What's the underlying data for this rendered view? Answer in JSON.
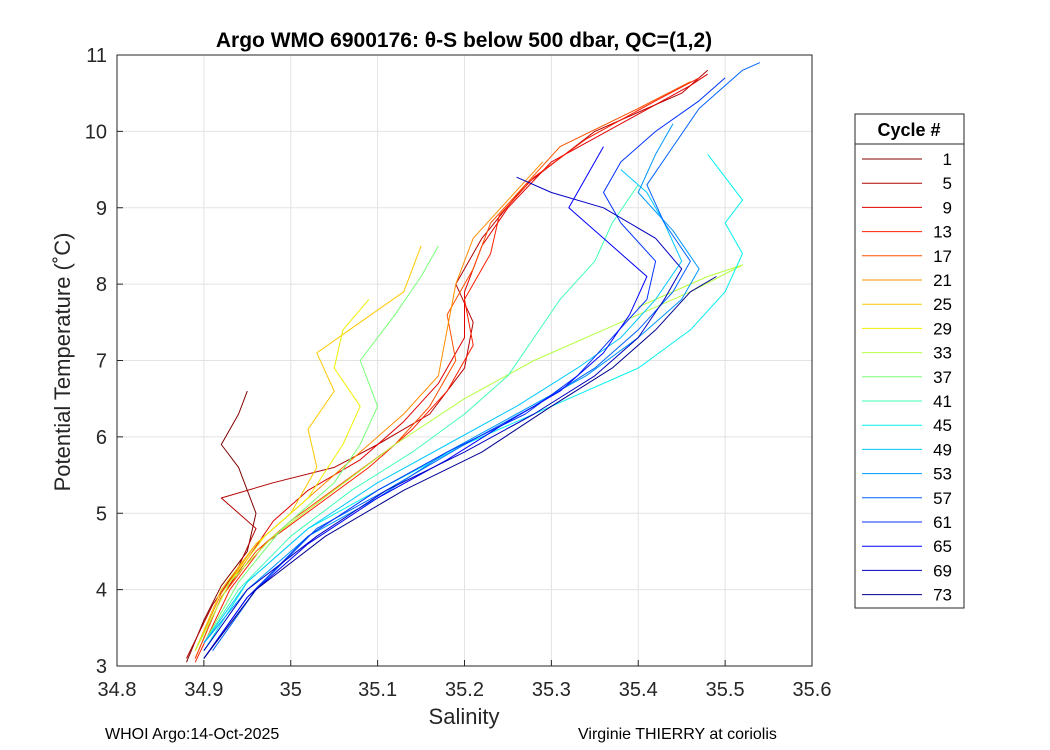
{
  "chart_data": {
    "type": "line",
    "title": "Argo WMO 6900176: θ-S below 500 dbar,  QC=(1,2)",
    "xlabel": "Salinity",
    "ylabel": "Potential Temperature (˚C)",
    "xlim": [
      34.8,
      35.6
    ],
    "ylim": [
      3,
      11
    ],
    "xticks": [
      "34.8",
      "34.9",
      "35",
      "35.1",
      "35.2",
      "35.3",
      "35.4",
      "35.5",
      "35.6"
    ],
    "yticks": [
      "3",
      "4",
      "5",
      "6",
      "7",
      "8",
      "9",
      "10",
      "11"
    ],
    "grid": true,
    "legend": {
      "title": "Cycle #",
      "position": "right",
      "entries": [
        "1",
        "5",
        "9",
        "13",
        "17",
        "21",
        "25",
        "29",
        "33",
        "37",
        "41",
        "45",
        "49",
        "53",
        "57",
        "61",
        "65",
        "69",
        "73"
      ]
    },
    "colors": [
      "#800000",
      "#b40000",
      "#e00000",
      "#ff1e00",
      "#ff5000",
      "#ff8c00",
      "#ffc800",
      "#f0f000",
      "#b4ff40",
      "#78ff78",
      "#40ffb4",
      "#00f0f0",
      "#00c8ff",
      "#0096ff",
      "#0064ff",
      "#0032ff",
      "#0000ff",
      "#0000c0",
      "#000090"
    ],
    "series": [
      {
        "name": "1",
        "points": [
          [
            34.88,
            3.05
          ],
          [
            34.9,
            3.6
          ],
          [
            34.92,
            4.05
          ],
          [
            34.95,
            4.5
          ],
          [
            34.96,
            5.0
          ],
          [
            34.94,
            5.6
          ],
          [
            34.92,
            5.9
          ],
          [
            34.94,
            6.3
          ],
          [
            34.95,
            6.6
          ]
        ]
      },
      {
        "name": "5",
        "points": [
          [
            34.88,
            3.1
          ],
          [
            34.91,
            3.8
          ],
          [
            34.94,
            4.3
          ],
          [
            34.96,
            4.8
          ],
          [
            34.92,
            5.2
          ],
          [
            34.98,
            5.4
          ],
          [
            35.05,
            5.6
          ],
          [
            35.1,
            5.9
          ],
          [
            35.16,
            6.3
          ],
          [
            35.2,
            6.9
          ],
          [
            35.21,
            7.5
          ],
          [
            35.19,
            8.0
          ],
          [
            35.22,
            8.6
          ],
          [
            35.27,
            9.3
          ],
          [
            35.35,
            10.0
          ],
          [
            35.45,
            10.5
          ],
          [
            35.48,
            10.8
          ]
        ]
      },
      {
        "name": "9",
        "points": [
          [
            34.89,
            3.1
          ],
          [
            34.92,
            3.9
          ],
          [
            34.95,
            4.4
          ],
          [
            34.98,
            4.9
          ],
          [
            35.02,
            5.3
          ],
          [
            35.08,
            5.7
          ],
          [
            35.13,
            6.2
          ],
          [
            35.17,
            6.7
          ],
          [
            35.2,
            7.3
          ],
          [
            35.2,
            7.9
          ],
          [
            35.22,
            8.5
          ],
          [
            35.25,
            9.0
          ],
          [
            35.3,
            9.6
          ],
          [
            35.38,
            10.1
          ],
          [
            35.46,
            10.6
          ],
          [
            35.48,
            10.75
          ]
        ]
      },
      {
        "name": "13",
        "points": [
          [
            34.89,
            3.05
          ],
          [
            34.93,
            4.0
          ],
          [
            34.97,
            4.6
          ],
          [
            35.03,
            5.1
          ],
          [
            35.09,
            5.6
          ],
          [
            35.14,
            6.1
          ],
          [
            35.18,
            6.6
          ],
          [
            35.21,
            7.2
          ],
          [
            35.2,
            7.8
          ],
          [
            35.23,
            8.4
          ],
          [
            35.24,
            8.9
          ],
          [
            35.28,
            9.4
          ],
          [
            35.34,
            9.9
          ],
          [
            35.42,
            10.4
          ],
          [
            35.47,
            10.7
          ]
        ]
      },
      {
        "name": "17",
        "points": [
          [
            34.89,
            3.1
          ],
          [
            34.92,
            3.9
          ],
          [
            34.96,
            4.5
          ],
          [
            35.0,
            4.9
          ],
          [
            35.06,
            5.4
          ],
          [
            35.12,
            5.9
          ],
          [
            35.16,
            6.4
          ],
          [
            35.19,
            7.0
          ],
          [
            35.18,
            7.6
          ],
          [
            35.21,
            8.2
          ],
          [
            35.23,
            8.8
          ],
          [
            35.27,
            9.3
          ],
          [
            35.31,
            9.8
          ],
          [
            35.4,
            10.3
          ],
          [
            35.46,
            10.65
          ]
        ]
      },
      {
        "name": "21",
        "points": [
          [
            34.89,
            3.2
          ],
          [
            34.92,
            3.95
          ],
          [
            34.96,
            4.6
          ],
          [
            35.02,
            5.2
          ],
          [
            35.08,
            5.8
          ],
          [
            35.13,
            6.3
          ],
          [
            35.17,
            6.8
          ],
          [
            35.18,
            7.4
          ],
          [
            35.19,
            8.0
          ],
          [
            35.21,
            8.6
          ],
          [
            35.25,
            9.1
          ],
          [
            35.29,
            9.6
          ]
        ]
      },
      {
        "name": "25",
        "points": [
          [
            34.89,
            3.2
          ],
          [
            34.92,
            4.0
          ],
          [
            34.96,
            4.6
          ],
          [
            35.0,
            5.0
          ],
          [
            35.03,
            5.6
          ],
          [
            35.02,
            6.1
          ],
          [
            35.05,
            6.6
          ],
          [
            35.03,
            7.1
          ],
          [
            35.08,
            7.5
          ],
          [
            35.13,
            7.9
          ],
          [
            35.15,
            8.5
          ]
        ]
      },
      {
        "name": "29",
        "points": [
          [
            34.89,
            3.2
          ],
          [
            34.93,
            4.1
          ],
          [
            34.97,
            4.7
          ],
          [
            35.02,
            5.2
          ],
          [
            35.06,
            5.9
          ],
          [
            35.08,
            6.4
          ],
          [
            35.05,
            6.9
          ],
          [
            35.06,
            7.4
          ],
          [
            35.09,
            7.8
          ]
        ]
      },
      {
        "name": "33",
        "points": [
          [
            34.89,
            3.2
          ],
          [
            34.93,
            4.1
          ],
          [
            34.98,
            4.7
          ],
          [
            35.05,
            5.3
          ],
          [
            35.12,
            5.9
          ],
          [
            35.2,
            6.5
          ],
          [
            35.28,
            7.0
          ],
          [
            35.38,
            7.5
          ],
          [
            35.46,
            7.9
          ],
          [
            35.52,
            8.25
          ],
          [
            35.48,
            8.1
          ],
          [
            35.4,
            7.7
          ]
        ]
      },
      {
        "name": "37",
        "points": [
          [
            34.9,
            3.3
          ],
          [
            34.94,
            4.1
          ],
          [
            34.99,
            4.8
          ],
          [
            35.05,
            5.4
          ],
          [
            35.08,
            5.9
          ],
          [
            35.1,
            6.4
          ],
          [
            35.08,
            7.0
          ],
          [
            35.12,
            7.6
          ],
          [
            35.15,
            8.1
          ],
          [
            35.17,
            8.5
          ]
        ]
      },
      {
        "name": "41",
        "points": [
          [
            34.9,
            3.3
          ],
          [
            34.94,
            4.0
          ],
          [
            35.0,
            4.7
          ],
          [
            35.07,
            5.3
          ],
          [
            35.14,
            5.8
          ],
          [
            35.2,
            6.3
          ],
          [
            35.25,
            6.8
          ],
          [
            35.28,
            7.3
          ],
          [
            35.31,
            7.8
          ],
          [
            35.35,
            8.3
          ],
          [
            35.37,
            8.8
          ],
          [
            35.4,
            9.3
          ]
        ]
      },
      {
        "name": "45",
        "points": [
          [
            34.9,
            3.2
          ],
          [
            34.95,
            4.1
          ],
          [
            35.02,
            4.8
          ],
          [
            35.1,
            5.3
          ],
          [
            35.2,
            5.9
          ],
          [
            35.3,
            6.4
          ],
          [
            35.4,
            6.9
          ],
          [
            35.46,
            7.4
          ],
          [
            35.5,
            7.9
          ],
          [
            35.52,
            8.4
          ],
          [
            35.5,
            8.8
          ],
          [
            35.52,
            9.1
          ],
          [
            35.5,
            9.4
          ],
          [
            35.48,
            9.7
          ]
        ]
      },
      {
        "name": "49",
        "points": [
          [
            34.9,
            3.3
          ],
          [
            34.95,
            4.1
          ],
          [
            35.02,
            4.8
          ],
          [
            35.1,
            5.4
          ],
          [
            35.18,
            5.9
          ],
          [
            35.26,
            6.4
          ],
          [
            35.33,
            6.9
          ],
          [
            35.38,
            7.3
          ],
          [
            35.42,
            7.8
          ],
          [
            35.45,
            8.3
          ],
          [
            35.43,
            8.8
          ],
          [
            35.41,
            9.2
          ],
          [
            35.38,
            9.5
          ]
        ]
      },
      {
        "name": "53",
        "points": [
          [
            34.9,
            3.3
          ],
          [
            34.95,
            4.0
          ],
          [
            35.02,
            4.7
          ],
          [
            35.1,
            5.2
          ],
          [
            35.18,
            5.8
          ],
          [
            35.26,
            6.3
          ],
          [
            35.34,
            6.8
          ],
          [
            35.4,
            7.3
          ],
          [
            35.45,
            7.8
          ],
          [
            35.47,
            8.2
          ],
          [
            35.44,
            8.7
          ],
          [
            35.4,
            9.2
          ],
          [
            35.42,
            9.7
          ],
          [
            35.44,
            10.1
          ]
        ]
      },
      {
        "name": "57",
        "points": [
          [
            34.91,
            3.2
          ],
          [
            34.96,
            4.0
          ],
          [
            35.03,
            4.8
          ],
          [
            35.11,
            5.3
          ],
          [
            35.2,
            5.9
          ],
          [
            35.28,
            6.4
          ],
          [
            35.35,
            6.9
          ],
          [
            35.4,
            7.4
          ],
          [
            35.44,
            7.9
          ],
          [
            35.46,
            8.3
          ],
          [
            35.43,
            8.8
          ],
          [
            35.41,
            9.3
          ],
          [
            35.44,
            9.8
          ],
          [
            35.47,
            10.3
          ],
          [
            35.52,
            10.8
          ],
          [
            35.54,
            10.9
          ]
        ]
      },
      {
        "name": "61",
        "points": [
          [
            34.9,
            3.1
          ],
          [
            34.95,
            3.9
          ],
          [
            35.02,
            4.7
          ],
          [
            35.1,
            5.3
          ],
          [
            35.18,
            5.8
          ],
          [
            35.27,
            6.3
          ],
          [
            35.33,
            6.8
          ],
          [
            35.37,
            7.3
          ],
          [
            35.41,
            7.8
          ],
          [
            35.42,
            8.3
          ],
          [
            35.38,
            8.8
          ],
          [
            35.36,
            9.2
          ],
          [
            35.38,
            9.6
          ],
          [
            35.42,
            10.0
          ],
          [
            35.47,
            10.4
          ],
          [
            35.5,
            10.7
          ]
        ]
      },
      {
        "name": "65",
        "points": [
          [
            34.9,
            3.1
          ],
          [
            34.95,
            3.9
          ],
          [
            35.02,
            4.6
          ],
          [
            35.1,
            5.2
          ],
          [
            35.18,
            5.7
          ],
          [
            35.25,
            6.2
          ],
          [
            35.31,
            6.6
          ],
          [
            35.36,
            7.1
          ],
          [
            35.39,
            7.6
          ],
          [
            35.41,
            8.1
          ],
          [
            35.36,
            8.6
          ],
          [
            35.32,
            9.0
          ],
          [
            35.34,
            9.4
          ],
          [
            35.36,
            9.8
          ]
        ]
      },
      {
        "name": "69",
        "points": [
          [
            34.9,
            3.2
          ],
          [
            34.95,
            4.0
          ],
          [
            35.03,
            4.7
          ],
          [
            35.11,
            5.3
          ],
          [
            35.2,
            5.8
          ],
          [
            35.28,
            6.3
          ],
          [
            35.35,
            6.8
          ],
          [
            35.4,
            7.3
          ],
          [
            35.43,
            7.8
          ],
          [
            35.45,
            8.2
          ],
          [
            35.42,
            8.6
          ],
          [
            35.36,
            9.0
          ],
          [
            35.3,
            9.2
          ],
          [
            35.26,
            9.4
          ]
        ]
      },
      {
        "name": "73",
        "points": [
          [
            34.9,
            3.1
          ],
          [
            34.96,
            4.0
          ],
          [
            35.04,
            4.7
          ],
          [
            35.13,
            5.3
          ],
          [
            35.22,
            5.8
          ],
          [
            35.3,
            6.4
          ],
          [
            35.37,
            6.9
          ],
          [
            35.42,
            7.4
          ],
          [
            35.46,
            7.9
          ],
          [
            35.49,
            8.1
          ]
        ]
      }
    ]
  },
  "footer": {
    "left": "WHOI Argo:14-Oct-2025",
    "right": "Virginie THIERRY at coriolis"
  }
}
